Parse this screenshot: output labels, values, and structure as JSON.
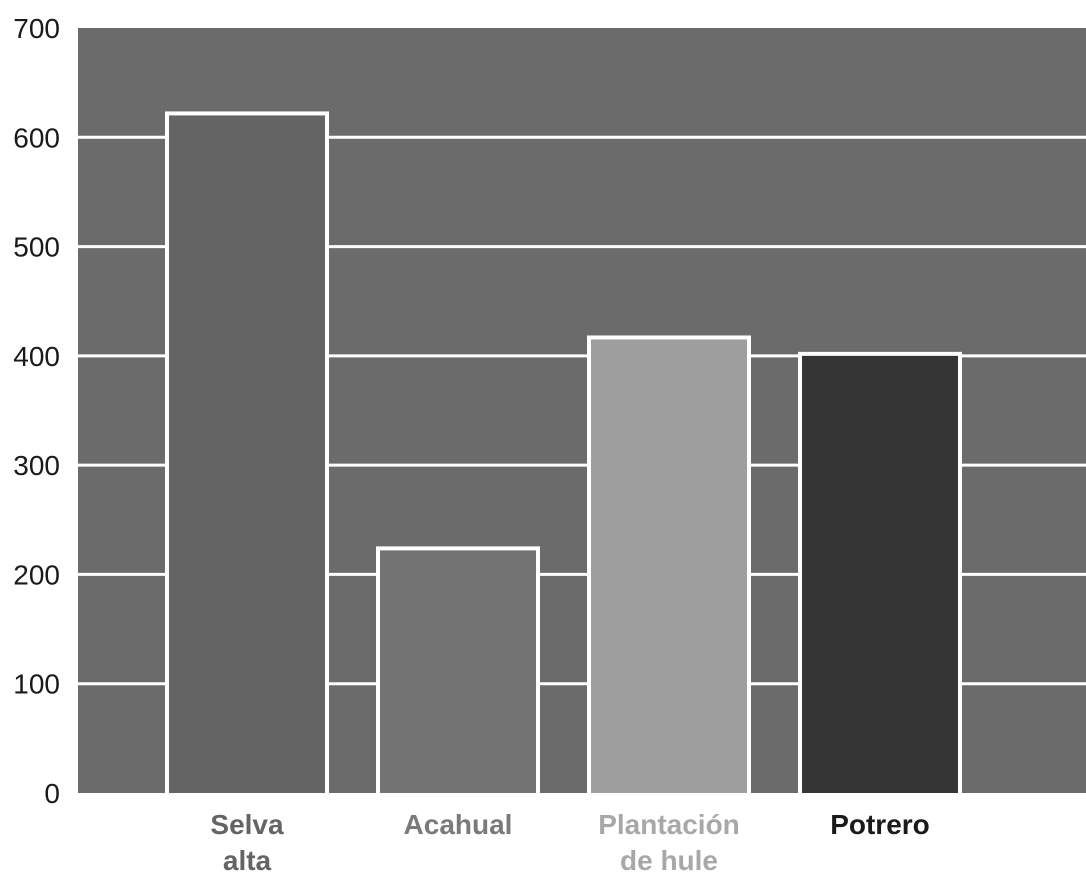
{
  "chart_data": {
    "type": "bar",
    "title": "",
    "xlabel": "",
    "ylabel": "",
    "ylim": [
      0,
      700
    ],
    "yticks": [
      0,
      100,
      200,
      300,
      400,
      500,
      600,
      700
    ],
    "grid": true,
    "background_color": "#6b6b6b",
    "gridline_color": "#ffffff",
    "categories": [
      {
        "lines": [
          "Selva",
          "alta"
        ]
      },
      {
        "lines": [
          "Acahual"
        ]
      },
      {
        "lines": [
          "Plantación",
          "de hule"
        ]
      },
      {
        "lines": [
          "Potrero"
        ]
      }
    ],
    "values": [
      620,
      222,
      415,
      400
    ],
    "bar_colors": [
      "#646464",
      "#737373",
      "#9e9e9e",
      "#353535"
    ],
    "label_colors": [
      "#646464",
      "#7a7a7a",
      "#a8a8a8",
      "#1a1a1a"
    ]
  }
}
